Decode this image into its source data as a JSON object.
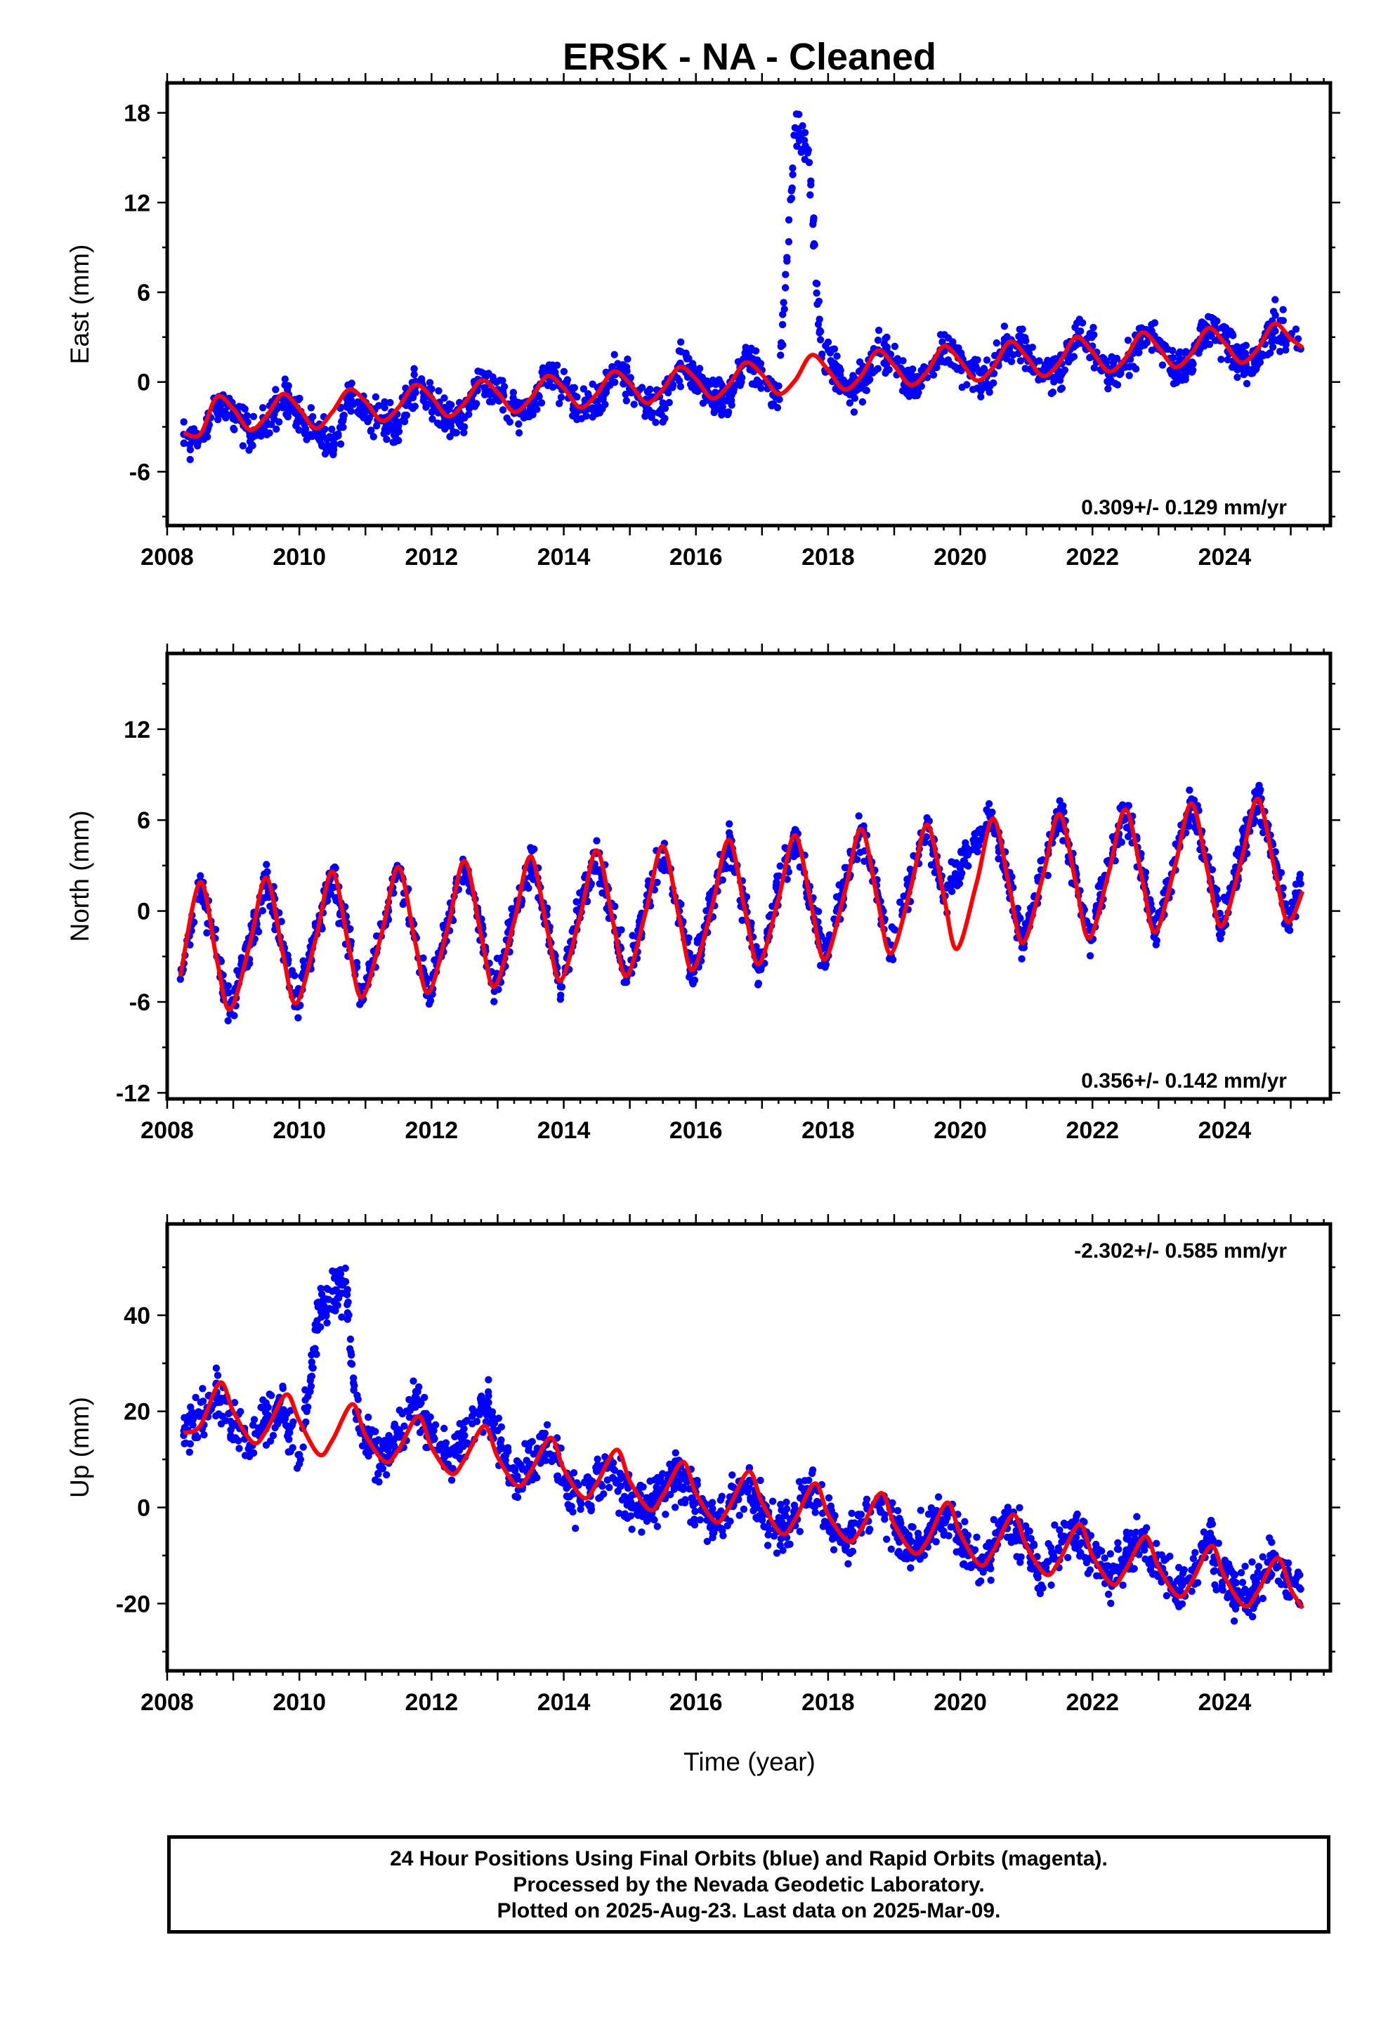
{
  "title": "ERSK  - NA - Cleaned",
  "colors": {
    "points": "#0000ff",
    "fit": "#ff0000",
    "frame": "#000000"
  },
  "footer": {
    "line1": "24 Hour Positions Using Final Orbits (blue) and Rapid Orbits (magenta).",
    "line2": "Processed by the Nevada Geodetic Laboratory.",
    "line3": "Plotted on 2025-Aug-23. Last data on 2025-Mar-09."
  },
  "chart_data": [
    {
      "type": "scatter",
      "ylabel": "East (mm)",
      "xlabel": "",
      "xlim": [
        2008.0,
        2025.6
      ],
      "ylim": [
        -9.6,
        20.0
      ],
      "x_ticks": [
        "2008",
        "2010",
        "2012",
        "2014",
        "2016",
        "2018",
        "2020",
        "2022",
        "2024"
      ],
      "y_ticks": [
        "18",
        "12",
        "6",
        "0",
        "-6"
      ],
      "y_tick_values": [
        18,
        12,
        6,
        0,
        -6
      ],
      "rate_text": "0.309+/- 0.129 mm/yr",
      "rate_position": "bottom-right",
      "series": [
        {
          "role": "daily positions",
          "color": "#0000ff",
          "x": [
            2008.25,
            2008.5,
            2008.75,
            2009.0,
            2009.25,
            2009.5,
            2009.75,
            2010.0,
            2010.25,
            2010.5,
            2010.75,
            2011.0,
            2011.25,
            2011.5,
            2011.75,
            2012.0,
            2012.25,
            2012.5,
            2012.75,
            2013.0,
            2013.25,
            2013.5,
            2013.75,
            2014.0,
            2014.25,
            2014.5,
            2014.75,
            2015.0,
            2015.25,
            2015.5,
            2015.75,
            2016.0,
            2016.25,
            2016.5,
            2016.75,
            2017.0,
            2017.25,
            2017.5,
            2017.7,
            2017.9,
            2018.1,
            2018.3,
            2018.5,
            2018.75,
            2019.0,
            2019.25,
            2019.5,
            2019.75,
            2020.4,
            2020.6,
            2020.75,
            2021.0,
            2021.25,
            2021.5,
            2021.75,
            2022.0,
            2022.25,
            2022.5,
            2022.75,
            2023.0,
            2023.25,
            2023.5,
            2023.75,
            2024.0,
            2024.25,
            2024.5,
            2024.75,
            2025.0,
            2025.15
          ],
          "y": [
            -3.5,
            -3.8,
            -1.5,
            -2.0,
            -3.6,
            -2.6,
            -1.0,
            -2.2,
            -3.3,
            -4.5,
            -0.9,
            -1.7,
            -2.6,
            -2.9,
            -0.4,
            -1.1,
            -2.5,
            -2.4,
            0.1,
            -0.5,
            -2.1,
            -2.0,
            0.4,
            -0.2,
            -1.8,
            -1.7,
            0.7,
            0.2,
            -1.5,
            -1.4,
            1.0,
            0.4,
            -1.2,
            -1.0,
            1.3,
            0.8,
            -1.1,
            17.0,
            15.5,
            1.6,
            1.0,
            -0.6,
            -0.3,
            2.0,
            1.4,
            -0.3,
            0.3,
            2.3,
            -0.1,
            2.0,
            2.6,
            2.0,
            0.2,
            0.7,
            3.0,
            2.4,
            0.5,
            1.0,
            3.3,
            2.8,
            0.8,
            1.3,
            3.6,
            3.1,
            1.1,
            1.5,
            3.8,
            3.1,
            2.2
          ]
        },
        {
          "role": "model fit",
          "color": "#ff0000",
          "x": [
            2008.25,
            2008.5,
            2008.75,
            2009.0,
            2009.25,
            2009.5,
            2009.75,
            2010.0,
            2010.25,
            2010.5,
            2010.75,
            2011.0,
            2011.25,
            2011.5,
            2011.75,
            2012.0,
            2012.25,
            2012.5,
            2012.75,
            2013.0,
            2013.25,
            2013.5,
            2013.75,
            2014.0,
            2014.25,
            2014.5,
            2014.75,
            2015.0,
            2015.25,
            2015.5,
            2015.75,
            2016.0,
            2016.25,
            2016.5,
            2016.75,
            2017.0,
            2017.25,
            2017.5,
            2017.75,
            2018.0,
            2018.25,
            2018.5,
            2018.75,
            2019.0,
            2019.25,
            2019.5,
            2019.75,
            2020.0,
            2020.25,
            2020.5,
            2020.75,
            2021.0,
            2021.25,
            2021.5,
            2021.75,
            2022.0,
            2022.25,
            2022.5,
            2022.75,
            2023.0,
            2023.25,
            2023.5,
            2023.75,
            2024.0,
            2024.25,
            2024.5,
            2024.75,
            2025.0,
            2025.18
          ],
          "y": [
            -3.4,
            -3.5,
            -1.0,
            -1.8,
            -3.2,
            -2.3,
            -0.8,
            -1.8,
            -3.1,
            -2.0,
            -0.5,
            -1.3,
            -2.6,
            -1.7,
            -0.2,
            -1.0,
            -2.3,
            -1.4,
            0.1,
            -0.7,
            -2.0,
            -1.1,
            0.4,
            -0.4,
            -1.7,
            -0.8,
            0.7,
            -0.1,
            -1.4,
            -0.5,
            1.0,
            0.2,
            -1.1,
            -0.2,
            1.3,
            0.5,
            -0.8,
            0.1,
            1.8,
            0.8,
            -0.5,
            0.4,
            2.1,
            1.1,
            -0.2,
            0.7,
            2.4,
            1.4,
            0.1,
            1.0,
            2.7,
            1.7,
            0.4,
            1.3,
            3.0,
            2.0,
            0.7,
            1.6,
            3.3,
            2.3,
            1.0,
            1.9,
            3.6,
            2.6,
            1.3,
            2.2,
            3.9,
            2.9,
            2.3
          ]
        }
      ]
    },
    {
      "type": "scatter",
      "ylabel": "North (mm)",
      "xlabel": "",
      "xlim": [
        2008.0,
        2025.6
      ],
      "ylim": [
        -12.4,
        17.0
      ],
      "x_ticks": [
        "2008",
        "2010",
        "2012",
        "2014",
        "2016",
        "2018",
        "2020",
        "2022",
        "2024"
      ],
      "y_ticks": [
        "12",
        "6",
        "0",
        "-6",
        "-12"
      ],
      "y_tick_values": [
        12,
        6,
        0,
        -6,
        -12
      ],
      "rate_text": "0.356+/- 0.142 mm/yr",
      "rate_position": "bottom-right",
      "series": [
        {
          "role": "daily positions",
          "color": "#0000ff",
          "x": [
            2008.2,
            2008.5,
            2008.75,
            2008.95,
            2009.25,
            2009.5,
            2009.75,
            2009.95,
            2010.25,
            2010.5,
            2010.75,
            2010.95,
            2011.25,
            2011.5,
            2011.75,
            2011.95,
            2012.25,
            2012.5,
            2012.75,
            2012.95,
            2013.25,
            2013.5,
            2013.75,
            2013.95,
            2014.25,
            2014.5,
            2014.75,
            2014.95,
            2015.25,
            2015.5,
            2015.75,
            2015.95,
            2016.25,
            2016.5,
            2016.75,
            2016.95,
            2017.25,
            2017.5,
            2017.75,
            2017.95,
            2018.25,
            2018.5,
            2018.75,
            2018.95,
            2019.25,
            2019.5,
            2019.75,
            2020.45,
            2020.75,
            2020.95,
            2021.25,
            2021.5,
            2021.75,
            2021.95,
            2022.25,
            2022.5,
            2022.75,
            2022.95,
            2023.25,
            2023.5,
            2023.75,
            2023.95,
            2024.25,
            2024.5,
            2024.75,
            2024.95,
            2025.15
          ],
          "y": [
            -4.5,
            2.0,
            -3.0,
            -6.8,
            -2.0,
            2.2,
            -2.5,
            -6.2,
            -1.5,
            2.6,
            -2.0,
            -5.9,
            -1.0,
            2.8,
            -1.6,
            -5.6,
            -0.6,
            3.1,
            -1.2,
            -5.3,
            -0.3,
            3.5,
            -0.8,
            -5.0,
            0.2,
            3.8,
            -0.4,
            -4.7,
            0.6,
            4.1,
            0.0,
            -4.6,
            1.0,
            4.5,
            0.3,
            -3.9,
            1.4,
            5.0,
            0.7,
            -3.3,
            1.8,
            5.5,
            1.1,
            -2.9,
            2.2,
            5.8,
            1.0,
            6.2,
            1.8,
            -2.1,
            2.7,
            6.5,
            2.3,
            -1.8,
            3.1,
            6.8,
            2.7,
            -1.5,
            3.4,
            7.2,
            3.0,
            -1.1,
            3.8,
            7.6,
            3.4,
            -0.7,
            1.8
          ]
        },
        {
          "role": "model fit",
          "color": "#ff0000",
          "x": [
            2008.2,
            2008.5,
            2008.75,
            2008.95,
            2009.25,
            2009.5,
            2009.75,
            2009.95,
            2010.25,
            2010.5,
            2010.75,
            2010.95,
            2011.25,
            2011.5,
            2011.75,
            2011.95,
            2012.25,
            2012.5,
            2012.75,
            2012.95,
            2013.25,
            2013.5,
            2013.75,
            2013.95,
            2014.25,
            2014.5,
            2014.75,
            2014.95,
            2015.25,
            2015.5,
            2015.75,
            2015.95,
            2016.25,
            2016.5,
            2016.75,
            2016.95,
            2017.25,
            2017.5,
            2017.75,
            2017.95,
            2018.25,
            2018.5,
            2018.75,
            2018.95,
            2019.25,
            2019.5,
            2019.75,
            2019.95,
            2020.25,
            2020.5,
            2020.75,
            2020.95,
            2021.25,
            2021.5,
            2021.75,
            2021.95,
            2022.25,
            2022.5,
            2022.75,
            2022.95,
            2023.25,
            2023.5,
            2023.75,
            2023.95,
            2024.25,
            2024.5,
            2024.75,
            2024.95,
            2025.18
          ],
          "y": [
            -4.3,
            1.9,
            -3.2,
            -6.5,
            -2.2,
            2.2,
            -2.8,
            -6.1,
            -1.8,
            2.6,
            -2.4,
            -5.7,
            -1.4,
            2.9,
            -2.0,
            -5.4,
            -1.0,
            3.3,
            -1.6,
            -5.0,
            -0.7,
            3.6,
            -1.2,
            -4.6,
            -0.3,
            4.0,
            -0.8,
            -4.3,
            0.1,
            4.3,
            -0.5,
            -3.9,
            0.4,
            4.7,
            -0.1,
            -3.5,
            0.8,
            5.0,
            0.3,
            -3.2,
            1.2,
            5.4,
            0.7,
            -2.8,
            1.5,
            5.7,
            1.0,
            -2.5,
            1.9,
            6.1,
            1.4,
            -2.1,
            2.3,
            6.4,
            1.8,
            -1.8,
            2.6,
            6.7,
            2.2,
            -1.4,
            3.0,
            7.1,
            2.5,
            -1.0,
            3.3,
            7.4,
            2.9,
            -0.7,
            1.3
          ]
        }
      ]
    },
    {
      "type": "scatter",
      "ylabel": "Up (mm)",
      "xlabel": "Time (year)",
      "xlim": [
        2008.0,
        2025.6
      ],
      "ylim": [
        -34.0,
        59.0
      ],
      "x_ticks": [
        "2008",
        "2010",
        "2012",
        "2014",
        "2016",
        "2018",
        "2020",
        "2022",
        "2024"
      ],
      "y_ticks": [
        "40",
        "20",
        "0",
        "-20"
      ],
      "y_tick_values": [
        40,
        20,
        0,
        -20
      ],
      "rate_text": "-2.302+/- 0.585 mm/yr",
      "rate_position": "top-right",
      "series": [
        {
          "role": "daily positions",
          "color": "#0000ff",
          "x": [
            2008.25,
            2008.5,
            2008.75,
            2009.0,
            2009.25,
            2009.5,
            2009.75,
            2010.0,
            2010.3,
            2010.5,
            2010.7,
            2010.85,
            2011.0,
            2011.25,
            2011.5,
            2011.75,
            2012.0,
            2012.25,
            2012.5,
            2012.75,
            2013.0,
            2013.25,
            2013.5,
            2013.75,
            2014.0,
            2014.25,
            2014.5,
            2014.75,
            2015.0,
            2015.25,
            2015.5,
            2015.75,
            2016.0,
            2016.25,
            2016.5,
            2016.75,
            2017.0,
            2017.25,
            2017.5,
            2017.75,
            2018.0,
            2018.25,
            2018.5,
            2018.75,
            2019.0,
            2019.25,
            2019.5,
            2019.75,
            2020.3,
            2020.5,
            2020.75,
            2021.0,
            2021.25,
            2021.5,
            2021.75,
            2022.0,
            2022.25,
            2022.5,
            2022.75,
            2023.0,
            2023.25,
            2023.5,
            2023.75,
            2024.0,
            2024.25,
            2024.5,
            2024.75,
            2025.0,
            2025.15
          ],
          "y": [
            15.0,
            19.0,
            24.0,
            17.0,
            13.0,
            18.0,
            20.0,
            11.0,
            42.0,
            45.0,
            47.0,
            20.0,
            14.0,
            10.0,
            15.0,
            23.0,
            15.0,
            9.0,
            15.0,
            22.0,
            16.0,
            6.0,
            9.0,
            14.0,
            5.0,
            2.0,
            5.0,
            8.0,
            2.0,
            -1.0,
            3.0,
            7.0,
            1.0,
            -3.0,
            1.0,
            5.0,
            -2.0,
            -5.0,
            -1.0,
            4.0,
            -3.0,
            -7.0,
            -3.0,
            2.0,
            -4.0,
            -9.0,
            -5.0,
            -1.0,
            -12.0,
            -8.0,
            -2.0,
            -8.0,
            -13.0,
            -9.0,
            -4.0,
            -10.0,
            -15.0,
            -11.0,
            -6.0,
            -12.0,
            -18.0,
            -13.0,
            -8.0,
            -14.0,
            -19.0,
            -16.0,
            -11.0,
            -15.0,
            -17.0
          ]
        },
        {
          "role": "model fit",
          "color": "#ff0000",
          "x": [
            2008.25,
            2008.5,
            2008.8,
            2009.0,
            2009.3,
            2009.5,
            2009.8,
            2010.0,
            2010.3,
            2010.5,
            2010.8,
            2011.0,
            2011.3,
            2011.5,
            2011.8,
            2012.0,
            2012.3,
            2012.5,
            2012.8,
            2013.0,
            2013.3,
            2013.5,
            2013.8,
            2014.0,
            2014.3,
            2014.5,
            2014.8,
            2015.0,
            2015.3,
            2015.5,
            2015.8,
            2016.0,
            2016.3,
            2016.5,
            2016.8,
            2017.0,
            2017.3,
            2017.5,
            2017.8,
            2018.0,
            2018.3,
            2018.5,
            2018.8,
            2019.0,
            2019.3,
            2019.5,
            2019.8,
            2020.0,
            2020.3,
            2020.5,
            2020.8,
            2021.0,
            2021.3,
            2021.5,
            2021.8,
            2022.0,
            2022.3,
            2022.5,
            2022.8,
            2023.0,
            2023.3,
            2023.5,
            2023.8,
            2024.0,
            2024.3,
            2024.5,
            2024.8,
            2025.0,
            2025.18
          ],
          "y": [
            15.5,
            17.0,
            26.0,
            20.0,
            13.5,
            16.0,
            23.5,
            18.0,
            11.0,
            14.0,
            21.5,
            15.0,
            9.5,
            12.0,
            19.0,
            12.5,
            7.0,
            10.0,
            17.0,
            10.5,
            4.5,
            7.5,
            14.5,
            8.0,
            2.0,
            5.0,
            12.0,
            5.5,
            -0.5,
            2.5,
            9.5,
            3.0,
            -3.0,
            0.0,
            7.5,
            1.0,
            -5.5,
            -2.5,
            5.0,
            -1.5,
            -7.0,
            -4.5,
            3.0,
            -3.5,
            -9.5,
            -7.0,
            1.0,
            -5.5,
            -12.0,
            -9.0,
            -1.5,
            -8.0,
            -14.0,
            -11.0,
            -3.5,
            -10.0,
            -16.0,
            -13.0,
            -6.0,
            -12.5,
            -18.5,
            -15.5,
            -8.0,
            -14.5,
            -20.5,
            -17.5,
            -10.5,
            -17.0,
            -21.0
          ]
        }
      ]
    }
  ]
}
